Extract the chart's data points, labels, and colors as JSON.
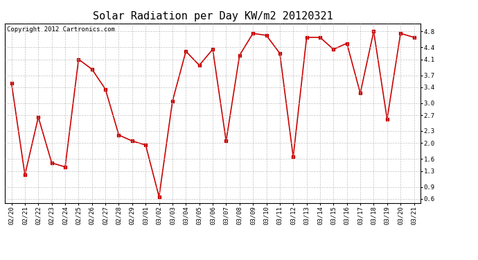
{
  "title": "Solar Radiation per Day KW/m2 20120321",
  "copyright_text": "Copyright 2012 Cartronics.com",
  "labels": [
    "02/20",
    "02/21",
    "02/22",
    "02/23",
    "02/24",
    "02/25",
    "02/26",
    "02/27",
    "02/28",
    "02/29",
    "03/01",
    "03/02",
    "03/03",
    "03/04",
    "03/05",
    "03/06",
    "03/07",
    "03/08",
    "03/09",
    "03/10",
    "03/11",
    "03/12",
    "03/13",
    "03/14",
    "03/15",
    "03/16",
    "03/17",
    "03/18",
    "03/19",
    "03/20",
    "03/21"
  ],
  "values": [
    3.5,
    1.2,
    2.65,
    1.5,
    1.4,
    4.1,
    3.85,
    3.35,
    2.2,
    2.05,
    1.95,
    0.65,
    3.05,
    4.3,
    3.95,
    4.35,
    2.05,
    4.2,
    4.75,
    4.7,
    4.25,
    1.65,
    4.65,
    4.65,
    4.35,
    4.5,
    3.25,
    4.8,
    2.6,
    4.75,
    4.65
  ],
  "line_color": "#cc0000",
  "marker": "s",
  "marker_size": 3,
  "background_color": "#ffffff",
  "plot_bg_color": "#ffffff",
  "grid_color": "#bbbbbb",
  "ylim": [
    0.5,
    5.0
  ],
  "yticks": [
    0.6,
    0.9,
    1.3,
    1.6,
    2.0,
    2.3,
    2.7,
    3.0,
    3.4,
    3.7,
    4.1,
    4.4,
    4.8
  ],
  "title_fontsize": 11,
  "tick_fontsize": 6.5,
  "copyright_fontsize": 6.5
}
